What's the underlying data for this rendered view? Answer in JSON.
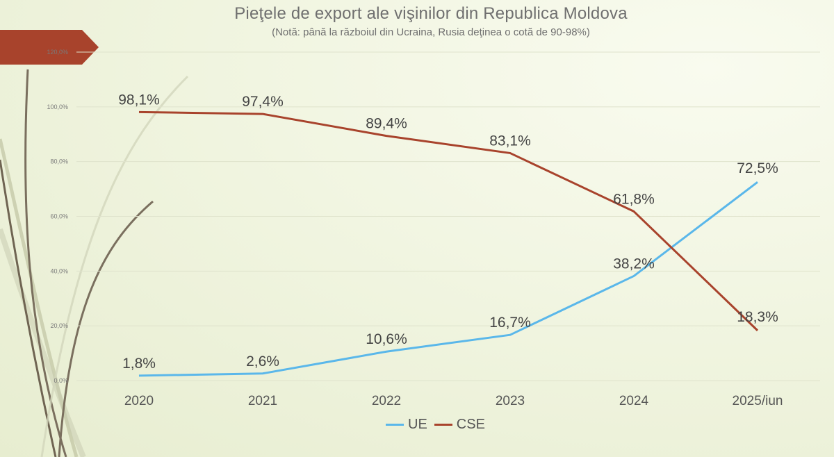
{
  "title": "Pieţele de export ale vişinilor din Republica Moldova",
  "subtitle": "(Notă: până la războiul din Ucraina, Rusia deţinea o cotă de 90-98%)",
  "colors": {
    "ue": "#5ab7ea",
    "cse": "#a8432c",
    "banner": "#a8432c"
  },
  "chart_data": {
    "type": "line",
    "title": "Pieţele de export ale vişinilor din Republica Moldova",
    "subtitle": "(Notă: până la războiul din Ucraina, Rusia deţinea o cotă de 90-98%)",
    "categories": [
      "2020",
      "2021",
      "2022",
      "2023",
      "2024",
      "2025/iun"
    ],
    "series": [
      {
        "name": "UE",
        "values": [
          1.8,
          2.6,
          10.6,
          16.7,
          38.2,
          72.5
        ],
        "labels": [
          "1,8%",
          "2,6%",
          "10,6%",
          "16,7%",
          "38,2%",
          "72,5%"
        ]
      },
      {
        "name": "CSE",
        "values": [
          98.1,
          97.4,
          89.4,
          83.1,
          61.8,
          18.3
        ],
        "labels": [
          "98,1%",
          "97,4%",
          "89,4%",
          "83,1%",
          "61,8%",
          "18,3%"
        ]
      }
    ],
    "ylim": [
      0,
      120
    ],
    "yticks": [
      "0,0%",
      "20,0%",
      "40,0%",
      "60,0%",
      "80,0%",
      "100,0%",
      "120,0%"
    ],
    "grid": true,
    "legend": "bottom"
  }
}
